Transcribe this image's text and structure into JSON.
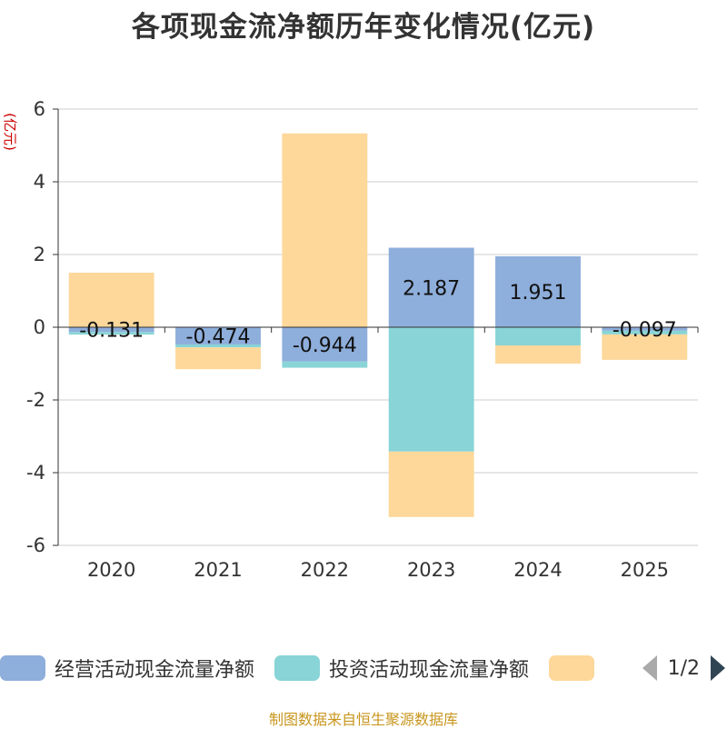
{
  "title": "各项现金流净额历年变化情况(亿元)",
  "source": "制图数据来自恒生聚源数据库",
  "legend": {
    "items": [
      {
        "label": "经营活动现金流量净额",
        "color": "#8eaedb"
      },
      {
        "label": "投资活动现金流量净额",
        "color": "#88d4d6"
      },
      {
        "label": "",
        "color": "#fdd89a"
      }
    ],
    "page": "1/2"
  },
  "chart_data": {
    "type": "bar",
    "stacked": true,
    "title": "各项现金流净额历年变化情况(亿元)",
    "ylabel": "(亿元)",
    "ylim": [
      -6,
      6
    ],
    "yticks": [
      6,
      4,
      2,
      0,
      -2,
      -4,
      -6
    ],
    "categories": [
      "2020",
      "2021",
      "2022",
      "2023",
      "2024",
      "2025"
    ],
    "series": [
      {
        "name": "经营活动现金流量净额",
        "color": "#8eaedb",
        "values": [
          -0.131,
          -0.474,
          -0.944,
          2.187,
          1.951,
          -0.097
        ],
        "labels": [
          "-0.131",
          "-0.474",
          "-0.944",
          "2.187",
          "1.951",
          "-0.097"
        ]
      },
      {
        "name": "投资活动现金流量净额",
        "color": "#88d4d6",
        "values": [
          -0.07,
          -0.08,
          -0.17,
          -3.42,
          -0.5,
          -0.1
        ]
      },
      {
        "name": "",
        "color": "#fdd89a",
        "values": [
          1.5,
          -0.6,
          5.33,
          -1.8,
          -0.5,
          -0.7
        ]
      }
    ]
  }
}
